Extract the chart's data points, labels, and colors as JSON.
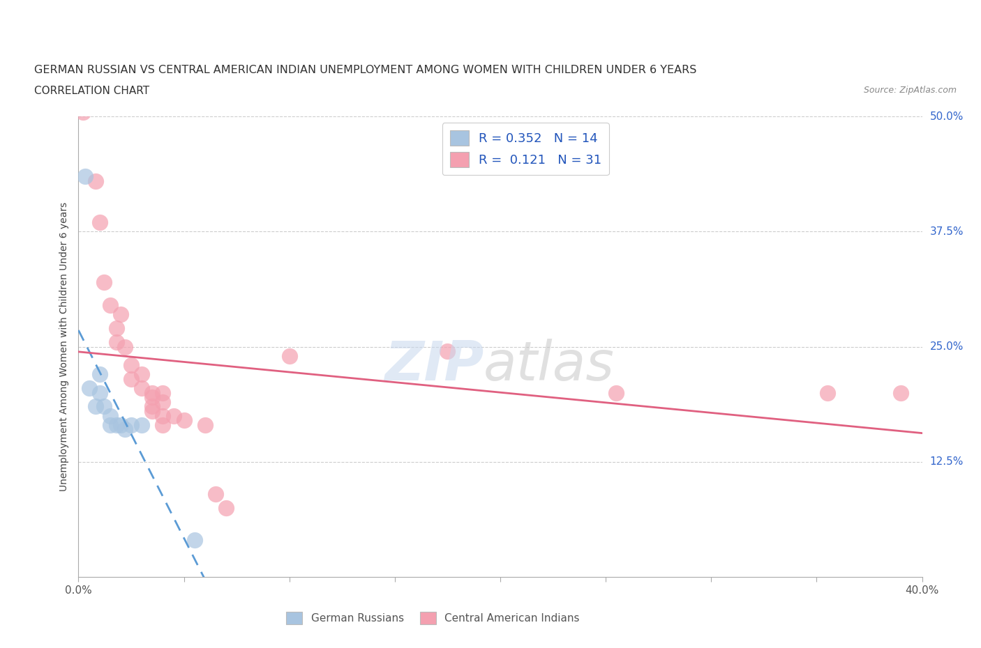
{
  "title": "GERMAN RUSSIAN VS CENTRAL AMERICAN INDIAN UNEMPLOYMENT AMONG WOMEN WITH CHILDREN UNDER 6 YEARS",
  "subtitle": "CORRELATION CHART",
  "source": "Source: ZipAtlas.com",
  "ylabel": "Unemployment Among Women with Children Under 6 years",
  "xlim": [
    0,
    0.4
  ],
  "ylim": [
    0,
    0.5
  ],
  "xticks": [
    0.0,
    0.05,
    0.1,
    0.15,
    0.2,
    0.25,
    0.3,
    0.35,
    0.4
  ],
  "xtick_labels": [
    "0.0%",
    "",
    "",
    "",
    "",
    "",
    "",
    "",
    "40.0%"
  ],
  "yticks": [
    0.0,
    0.125,
    0.25,
    0.375,
    0.5
  ],
  "ytick_labels": [
    "",
    "12.5%",
    "25.0%",
    "37.5%",
    "50.0%"
  ],
  "legend_blue_label": "R = 0.352   N = 14",
  "legend_pink_label": "R =  0.121   N = 31",
  "blue_color": "#a8c4e0",
  "pink_color": "#f4a0b0",
  "line_blue_color": "#5b9bd5",
  "line_pink_color": "#e06080",
  "blue_scatter": [
    [
      0.003,
      0.435
    ],
    [
      0.005,
      0.205
    ],
    [
      0.008,
      0.185
    ],
    [
      0.01,
      0.22
    ],
    [
      0.01,
      0.2
    ],
    [
      0.012,
      0.185
    ],
    [
      0.015,
      0.175
    ],
    [
      0.015,
      0.165
    ],
    [
      0.018,
      0.165
    ],
    [
      0.02,
      0.165
    ],
    [
      0.022,
      0.16
    ],
    [
      0.025,
      0.165
    ],
    [
      0.03,
      0.165
    ],
    [
      0.055,
      0.04
    ]
  ],
  "pink_scatter": [
    [
      0.002,
      0.505
    ],
    [
      0.008,
      0.43
    ],
    [
      0.01,
      0.385
    ],
    [
      0.012,
      0.32
    ],
    [
      0.015,
      0.295
    ],
    [
      0.018,
      0.27
    ],
    [
      0.018,
      0.255
    ],
    [
      0.02,
      0.285
    ],
    [
      0.022,
      0.25
    ],
    [
      0.025,
      0.23
    ],
    [
      0.025,
      0.215
    ],
    [
      0.03,
      0.22
    ],
    [
      0.03,
      0.205
    ],
    [
      0.035,
      0.2
    ],
    [
      0.035,
      0.195
    ],
    [
      0.035,
      0.185
    ],
    [
      0.035,
      0.18
    ],
    [
      0.04,
      0.2
    ],
    [
      0.04,
      0.19
    ],
    [
      0.04,
      0.175
    ],
    [
      0.04,
      0.165
    ],
    [
      0.045,
      0.175
    ],
    [
      0.05,
      0.17
    ],
    [
      0.06,
      0.165
    ],
    [
      0.065,
      0.09
    ],
    [
      0.07,
      0.075
    ],
    [
      0.1,
      0.24
    ],
    [
      0.175,
      0.245
    ],
    [
      0.255,
      0.2
    ],
    [
      0.355,
      0.2
    ],
    [
      0.39,
      0.2
    ]
  ],
  "blue_line_x": [
    0.0,
    0.18
  ],
  "pink_line_x": [
    0.0,
    0.4
  ]
}
